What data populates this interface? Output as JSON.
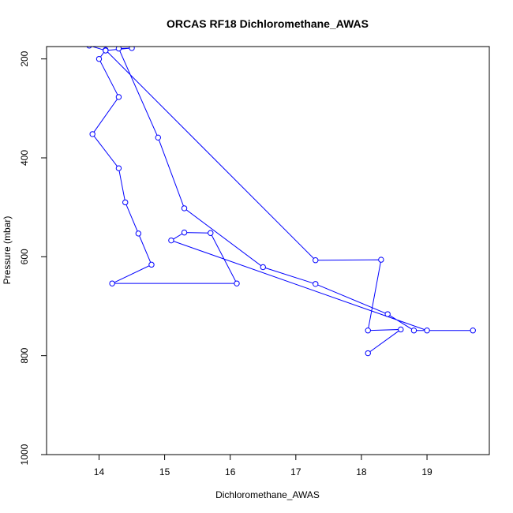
{
  "chart_data": {
    "type": "line",
    "title": "ORCAS RF18 Dichloromethane_AWAS",
    "xlabel": "Dichloromethane_AWAS",
    "ylabel": "Pressure (mbar)",
    "xlim": [
      13.2,
      19.95
    ],
    "ylim": [
      1000,
      175
    ],
    "y_reversed": true,
    "x_ticks": [
      14,
      15,
      16,
      17,
      18,
      19
    ],
    "x_tick_labels": [
      "14",
      "15",
      "16",
      "17",
      "18",
      "19"
    ],
    "y_ticks": [
      200,
      400,
      600,
      800,
      1000
    ],
    "y_tick_labels": [
      "200",
      "400",
      "600",
      "800",
      "1000"
    ],
    "grid": false,
    "series": [
      {
        "color": "#0000ff",
        "marker": "open-circle",
        "points": [
          {
            "x": 18.1,
            "y": 795
          },
          {
            "x": 18.6,
            "y": 747
          },
          {
            "x": 18.1,
            "y": 749
          },
          {
            "x": 18.3,
            "y": 606
          },
          {
            "x": 17.3,
            "y": 607
          },
          {
            "x": 14.1,
            "y": 182
          },
          {
            "x": 14.0,
            "y": 200
          },
          {
            "x": 14.3,
            "y": 277
          },
          {
            "x": 13.9,
            "y": 352
          },
          {
            "x": 14.3,
            "y": 421
          },
          {
            "x": 14.4,
            "y": 490
          },
          {
            "x": 14.6,
            "y": 553
          },
          {
            "x": 14.8,
            "y": 616
          },
          {
            "x": 14.2,
            "y": 654
          },
          {
            "x": 16.1,
            "y": 654
          },
          {
            "x": 15.7,
            "y": 552
          },
          {
            "x": 15.3,
            "y": 551
          },
          {
            "x": 15.1,
            "y": 567
          },
          {
            "x": 19.0,
            "y": 749
          },
          {
            "x": 19.7,
            "y": 749
          },
          {
            "x": 18.8,
            "y": 749
          },
          {
            "x": 18.4,
            "y": 716
          },
          {
            "x": 17.3,
            "y": 655
          },
          {
            "x": 16.5,
            "y": 621
          },
          {
            "x": 15.3,
            "y": 502
          },
          {
            "x": 14.9,
            "y": 359
          },
          {
            "x": 14.3,
            "y": 179
          },
          {
            "x": 14.5,
            "y": 178
          },
          {
            "x": 14.1,
            "y": 183
          },
          {
            "x": 13.85,
            "y": 173
          }
        ]
      }
    ]
  }
}
